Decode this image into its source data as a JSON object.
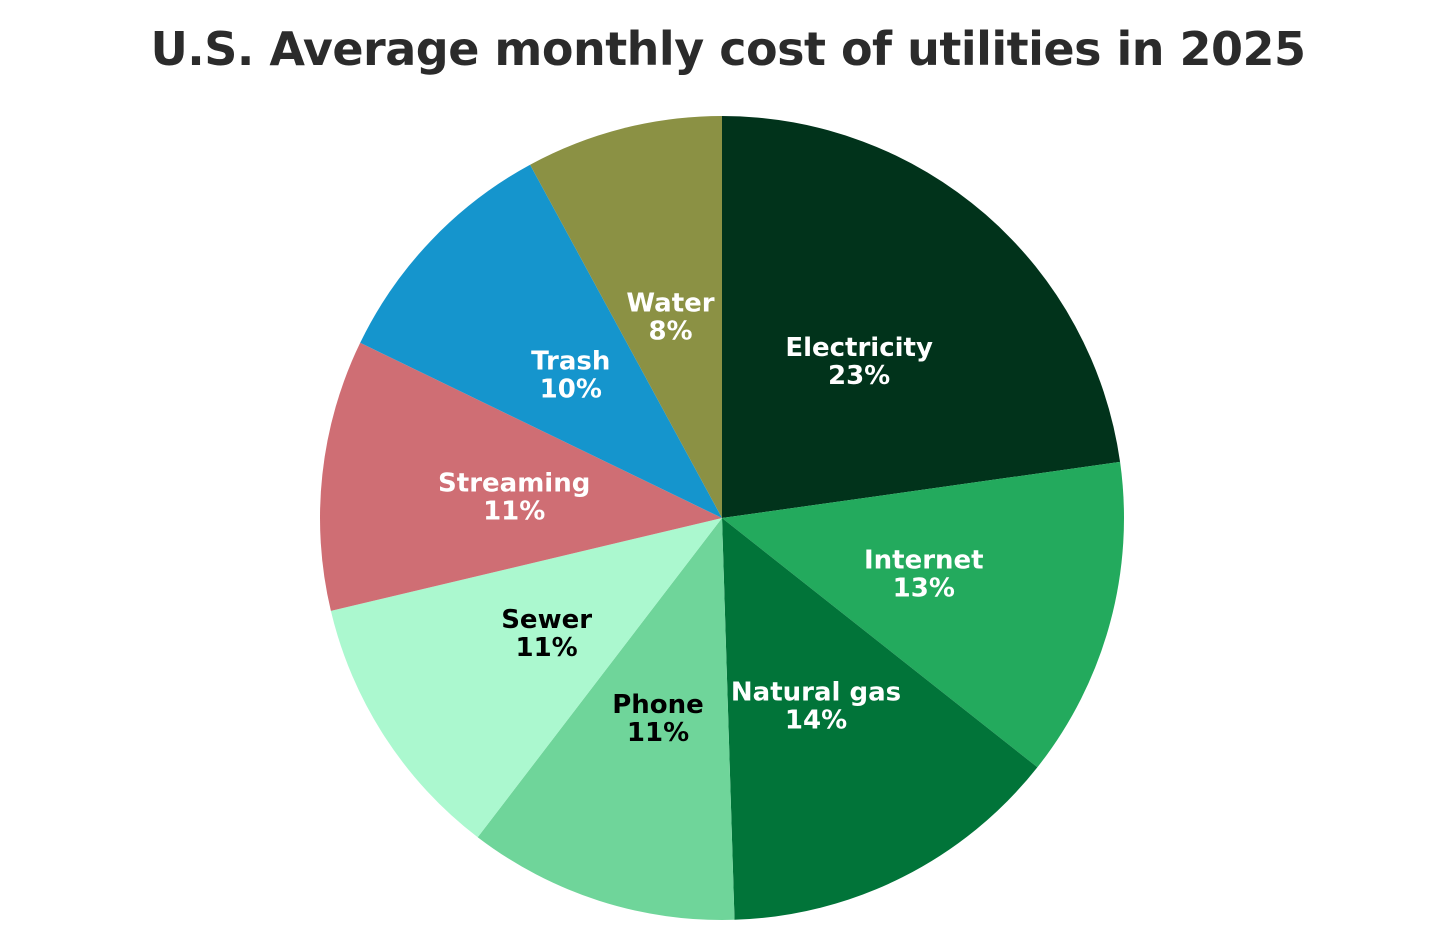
{
  "chart_data": {
    "type": "pie",
    "title": "U.S. Average monthly cost of utilities in 2025",
    "slices": [
      {
        "label": "Electricity",
        "value": 23,
        "value_label": "23%",
        "color": "#01331b",
        "text_color": "#ffffff"
      },
      {
        "label": "Internet",
        "value": 13,
        "value_label": "13%",
        "color": "#23aa5d",
        "text_color": "#ffffff"
      },
      {
        "label": "Natural gas",
        "value": 14,
        "value_label": "14%",
        "color": "#017439",
        "text_color": "#ffffff"
      },
      {
        "label": "Phone",
        "value": 11,
        "value_label": "11%",
        "color": "#6fd59a",
        "text_color": "#000000"
      },
      {
        "label": "Sewer",
        "value": 11,
        "value_label": "11%",
        "color": "#abf8cf",
        "text_color": "#000000"
      },
      {
        "label": "Streaming",
        "value": 11,
        "value_label": "11%",
        "color": "#cf6e74",
        "text_color": "#ffffff"
      },
      {
        "label": "Trash",
        "value": 10,
        "value_label": "10%",
        "color": "#1595cd",
        "text_color": "#ffffff"
      },
      {
        "label": "Water",
        "value": 8,
        "value_label": "8%",
        "color": "#8b9144",
        "text_color": "#ffffff"
      }
    ],
    "start": "12 o'clock",
    "direction": "clockwise",
    "legend": "none"
  }
}
